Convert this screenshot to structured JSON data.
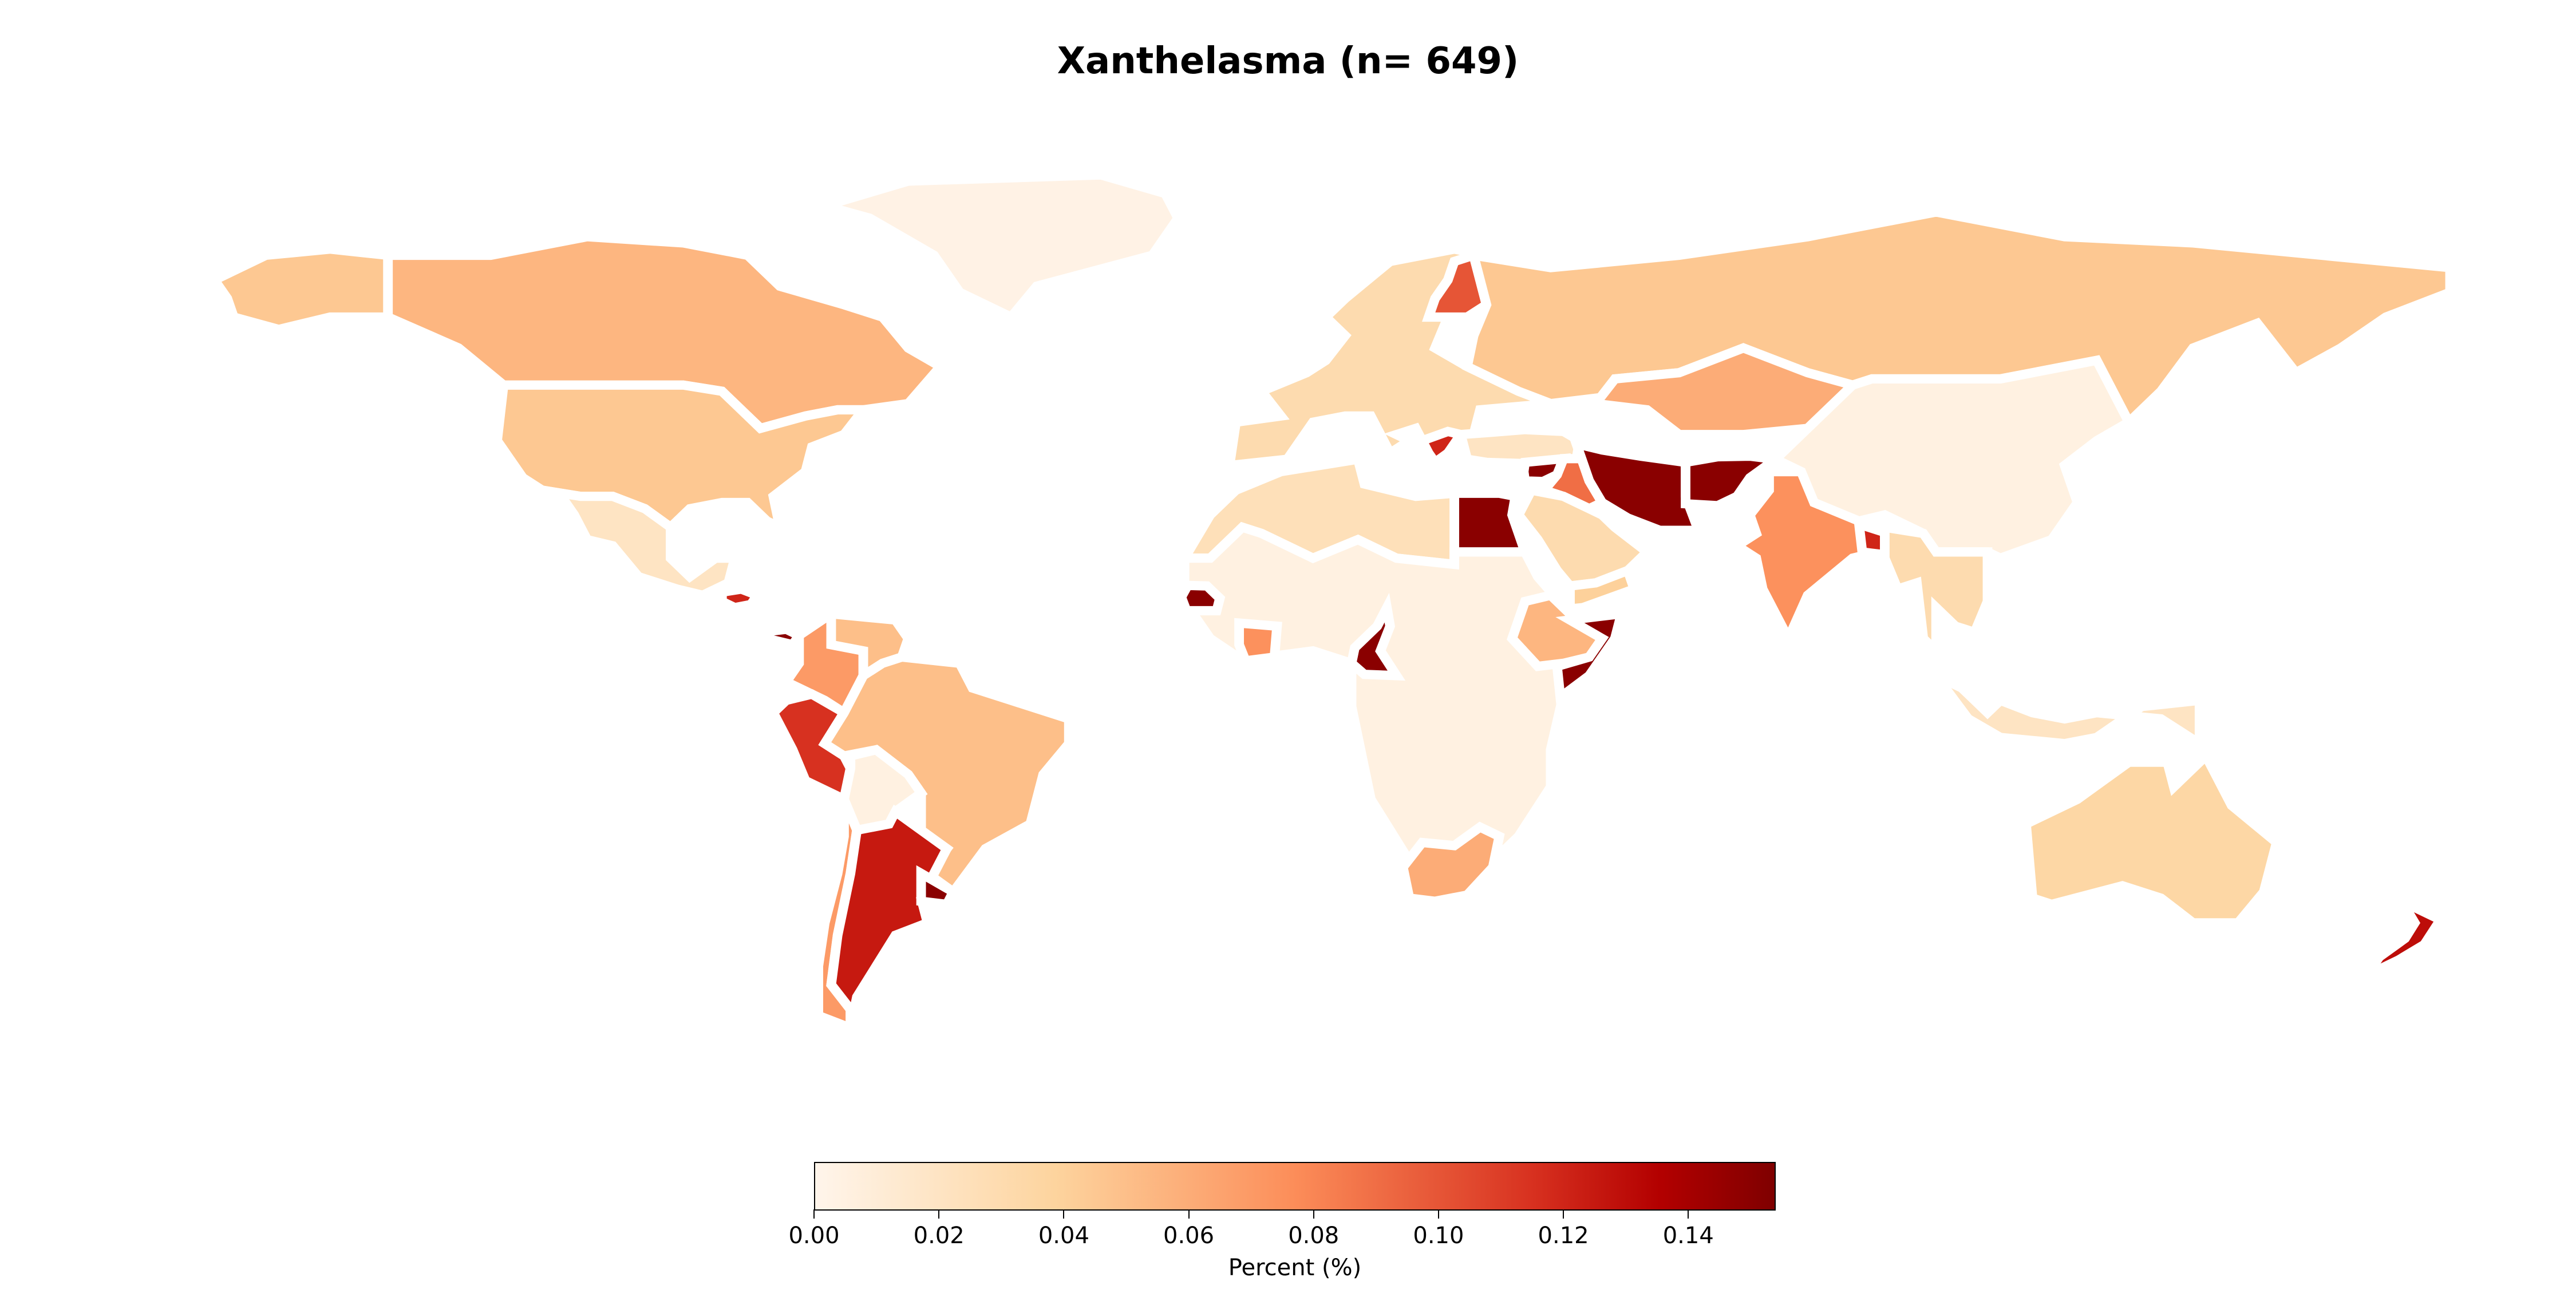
{
  "title": "Xanthelasma (n= 649)",
  "colorbar": {
    "label": "Percent (%)",
    "ticks": [
      "0.00",
      "0.02",
      "0.04",
      "0.06",
      "0.08",
      "0.10",
      "0.12",
      "0.14"
    ],
    "min": 0.0,
    "max": 0.154,
    "colormap": "OrRd"
  },
  "map_data": {
    "projection": "equirectangular",
    "regions": [
      {
        "name": "Canada",
        "value": 0.055
      },
      {
        "name": "United States",
        "value": 0.045
      },
      {
        "name": "Alaska",
        "value": 0.045
      },
      {
        "name": "Greenland",
        "value": 0.003
      },
      {
        "name": "Mexico",
        "value": 0.02
      },
      {
        "name": "Honduras",
        "value": 0.12
      },
      {
        "name": "Panama",
        "value": 0.15
      },
      {
        "name": "Colombia",
        "value": 0.07
      },
      {
        "name": "Venezuela",
        "value": 0.05
      },
      {
        "name": "Peru",
        "value": 0.115
      },
      {
        "name": "Brazil",
        "value": 0.05
      },
      {
        "name": "Bolivia",
        "value": 0.005
      },
      {
        "name": "Chile",
        "value": 0.07
      },
      {
        "name": "Argentina",
        "value": 0.125
      },
      {
        "name": "Uruguay",
        "value": 0.15
      },
      {
        "name": "Europe",
        "value": 0.03
      },
      {
        "name": "Finland",
        "value": 0.1
      },
      {
        "name": "Russia",
        "value": 0.045
      },
      {
        "name": "Greece",
        "value": 0.12
      },
      {
        "name": "Turkey",
        "value": 0.02
      },
      {
        "name": "Syria",
        "value": 0.15
      },
      {
        "name": "Iraq",
        "value": 0.09
      },
      {
        "name": "Saudi Arabia",
        "value": 0.03
      },
      {
        "name": "Iran",
        "value": 0.15
      },
      {
        "name": "Afghanistan",
        "value": 0.15
      },
      {
        "name": "Kazakhstan",
        "value": 0.06
      },
      {
        "name": "India",
        "value": 0.075
      },
      {
        "name": "Bangladesh",
        "value": 0.12
      },
      {
        "name": "China",
        "value": 0.005
      },
      {
        "name": "Southeast Asia",
        "value": 0.03
      },
      {
        "name": "Indonesia",
        "value": 0.02
      },
      {
        "name": "Egypt",
        "value": 0.15
      },
      {
        "name": "North Africa",
        "value": 0.025
      },
      {
        "name": "Africa",
        "value": 0.005
      },
      {
        "name": "Senegal",
        "value": 0.15
      },
      {
        "name": "Ivory Coast",
        "value": 0.075
      },
      {
        "name": "Cameroon",
        "value": 0.15
      },
      {
        "name": "Ethiopia",
        "value": 0.055
      },
      {
        "name": "Somalia",
        "value": 0.15
      },
      {
        "name": "Yemen",
        "value": 0.04
      },
      {
        "name": "South Africa",
        "value": 0.06
      },
      {
        "name": "Australia",
        "value": 0.035
      },
      {
        "name": "New Zealand",
        "value": 0.13
      }
    ]
  }
}
